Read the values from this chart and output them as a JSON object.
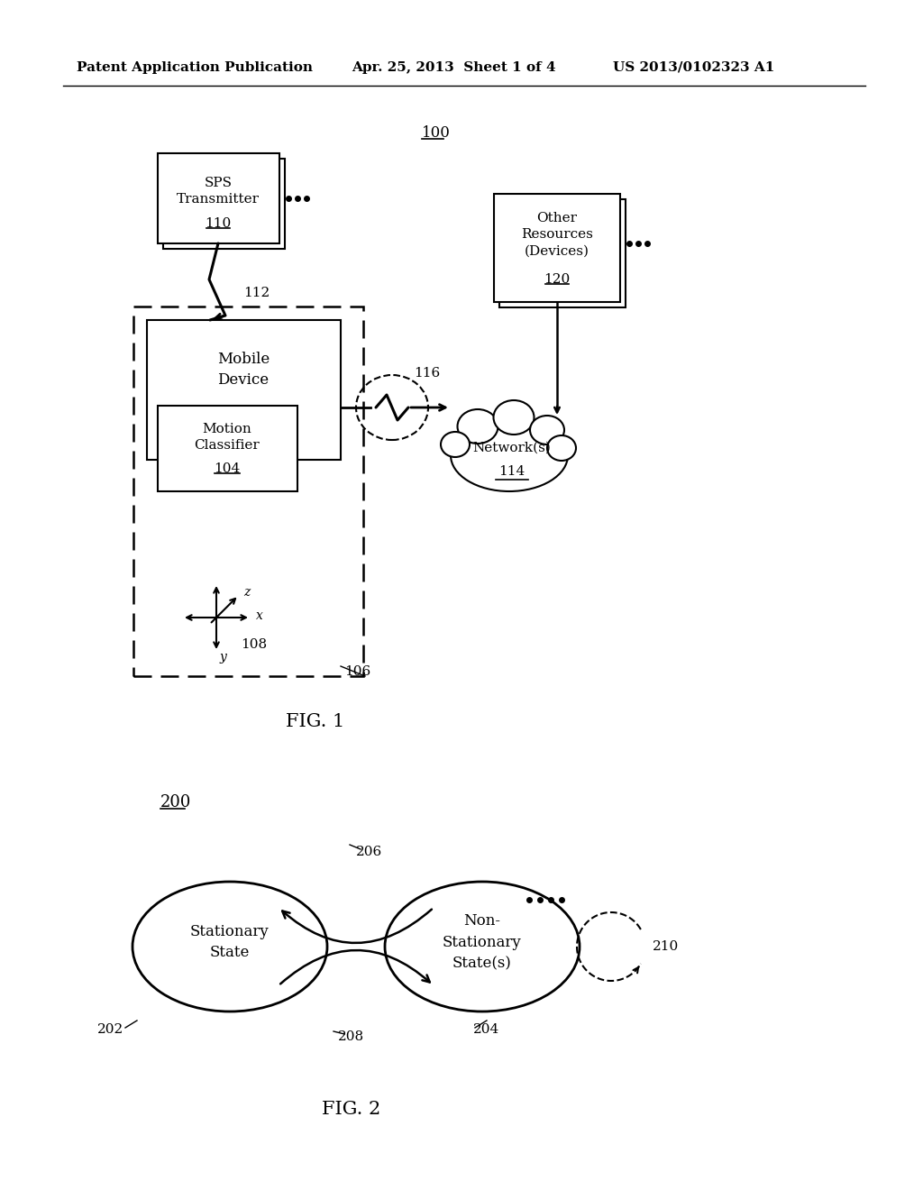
{
  "bg_color": "#ffffff",
  "header_left": "Patent Application Publication",
  "header_mid": "Apr. 25, 2013  Sheet 1 of 4",
  "header_right": "US 2013/0102323 A1",
  "fig1_label": "FIG. 1",
  "fig2_label": "FIG. 2",
  "ref_100": "100",
  "ref_112": "112",
  "ref_116": "116",
  "ref_106": "106",
  "ref_108": "108",
  "ref_200": "200",
  "ref_202": "202",
  "ref_204": "204",
  "ref_206": "206",
  "ref_208": "208",
  "ref_210": "210",
  "stationary_text": "Stationary\nState",
  "nonstationary_text": "Non-\nStationary\nState(s)"
}
